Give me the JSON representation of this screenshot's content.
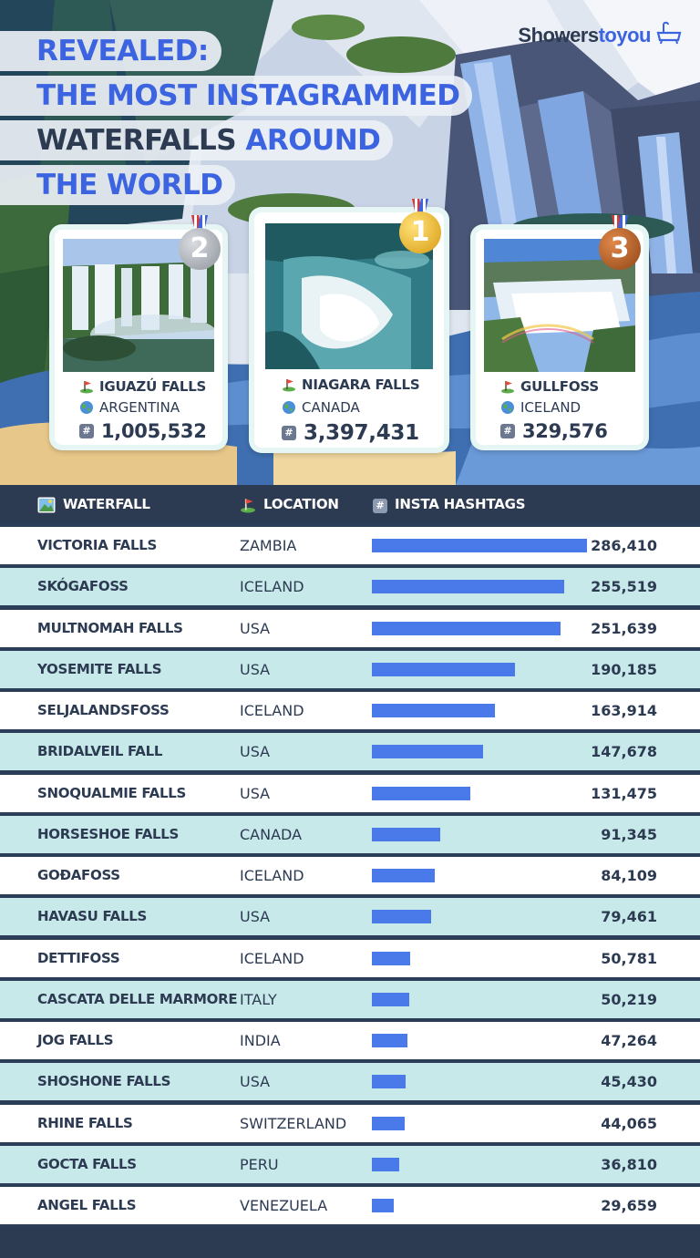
{
  "title": {
    "line1": "REVEALED:",
    "line2": "THE MOST INSTAGRAMMED",
    "line3_dark": "WATERFALLS",
    "line3_blue": "AROUND",
    "line4": "THE WORLD"
  },
  "brand": {
    "part1": "Showers",
    "part2": "toyou"
  },
  "colors": {
    "navy": "#2c3a52",
    "accent_blue": "#3c63e0",
    "bar_blue": "#4a7ae9",
    "row_alt": "#c8e9ea",
    "gold": "#e8b21a",
    "silver": "#a9adb4",
    "bronze": "#b8612a"
  },
  "podium": [
    {
      "rank": "2",
      "name": "IGUAZÚ FALLS",
      "country": "ARGENTINA",
      "hashtags": "1,005,532",
      "medal": "silver"
    },
    {
      "rank": "1",
      "name": "NIAGARA FALLS",
      "country": "CANADA",
      "hashtags": "3,397,431",
      "medal": "gold"
    },
    {
      "rank": "3",
      "name": "GULLFOSS",
      "country": "ICELAND",
      "hashtags": "329,576",
      "medal": "bronze"
    }
  ],
  "icons": {
    "waterfall": "picture-icon",
    "location": "flag-pin-icon",
    "country": "globe-icon",
    "hashtags": "hash-icon"
  },
  "headers": {
    "waterfall": "WATERFALL",
    "location": "LOCATION",
    "hashtags": "INSTA HASHTAGS"
  },
  "chart_data": {
    "type": "bar",
    "orientation": "horizontal",
    "title": "REVEALED: THE MOST INSTAGRAMMED WATERFALLS AROUND THE WORLD",
    "columns": [
      "WATERFALL",
      "LOCATION",
      "INSTA HASHTAGS"
    ],
    "rows": [
      {
        "name": "VICTORIA FALLS",
        "location": "ZAMBIA",
        "value": 286410,
        "label": "286,410"
      },
      {
        "name": "SKÓGAFOSS",
        "location": "ICELAND",
        "value": 255519,
        "label": "255,519"
      },
      {
        "name": "MULTNOMAH FALLS",
        "location": "USA",
        "value": 251639,
        "label": "251,639"
      },
      {
        "name": "YOSEMITE FALLS",
        "location": "USA",
        "value": 190185,
        "label": "190,185"
      },
      {
        "name": "SELJALANDSFOSS",
        "location": "ICELAND",
        "value": 163914,
        "label": "163,914"
      },
      {
        "name": "BRIDALVEIL FALL",
        "location": "USA",
        "value": 147678,
        "label": "147,678"
      },
      {
        "name": "SNOQUALMIE FALLS",
        "location": "USA",
        "value": 131475,
        "label": "131,475"
      },
      {
        "name": "HORSESHOE FALLS",
        "location": "CANADA",
        "value": 91345,
        "label": "91,345"
      },
      {
        "name": "GOÐAFOSS",
        "location": "ICELAND",
        "value": 84109,
        "label": "84,109"
      },
      {
        "name": "HAVASU FALLS",
        "location": "USA",
        "value": 79461,
        "label": "79,461"
      },
      {
        "name": "DETTIFOSS",
        "location": "ICELAND",
        "value": 50781,
        "label": "50,781"
      },
      {
        "name": "CASCATA DELLE MARMORE",
        "location": "ITALY",
        "value": 50219,
        "label": "50,219"
      },
      {
        "name": "JOG FALLS",
        "location": "INDIA",
        "value": 47264,
        "label": "47,264"
      },
      {
        "name": "SHOSHONE FALLS",
        "location": "USA",
        "value": 45430,
        "label": "45,430"
      },
      {
        "name": "RHINE FALLS",
        "location": "SWITZERLAND",
        "value": 44065,
        "label": "44,065"
      },
      {
        "name": "GOCTA FALLS",
        "location": "PERU",
        "value": 36810,
        "label": "36,810"
      },
      {
        "name": "ANGEL FALLS",
        "location": "VENEZUELA",
        "value": 29659,
        "label": "29,659"
      }
    ],
    "xlim": [
      0,
      286410
    ],
    "grid": false
  }
}
